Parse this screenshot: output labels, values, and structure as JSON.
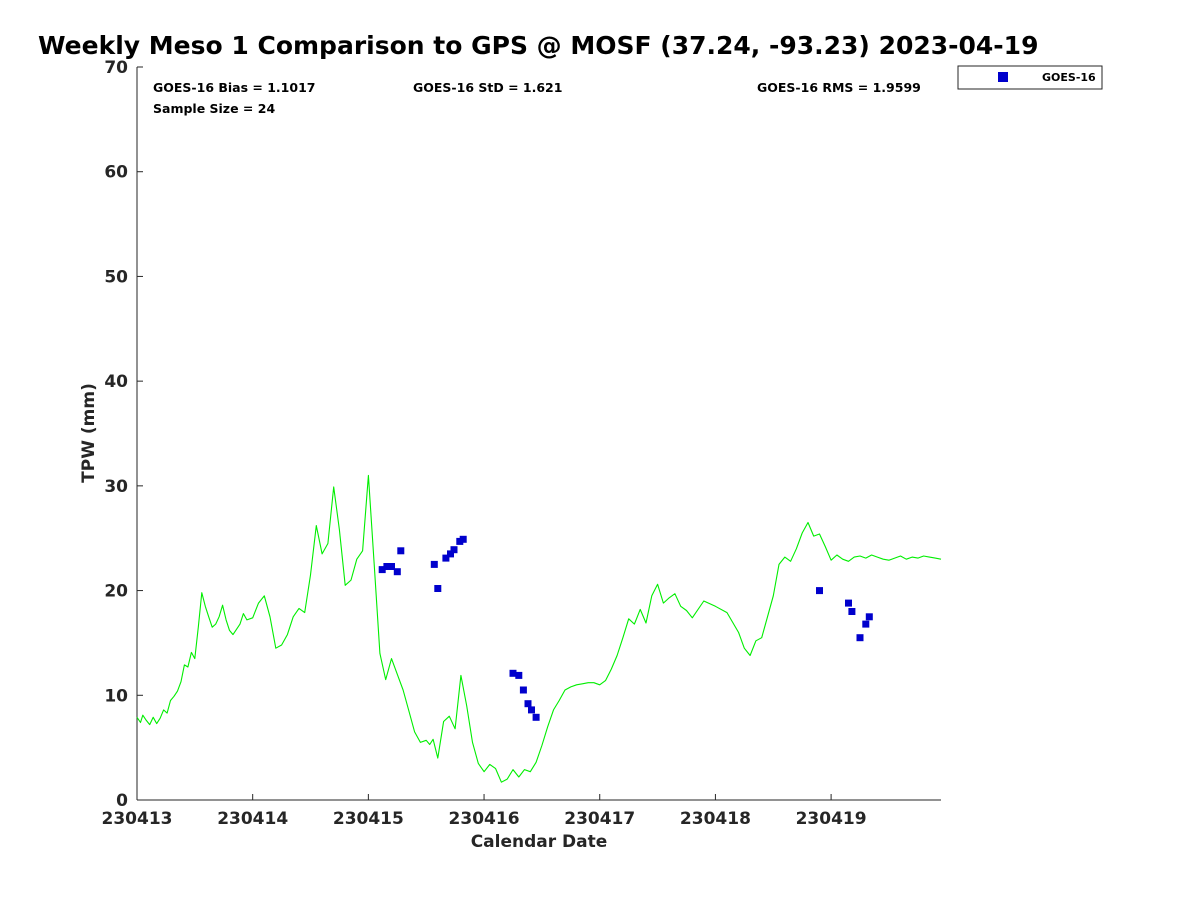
{
  "colors": {
    "gps_line": "#00ee00",
    "goes_marker": "#0000cc",
    "axis": "#262626"
  },
  "chart_data": {
    "type": "scatter",
    "title": "Weekly Meso 1 Comparison to GPS @ MOSF (37.24, -93.23) 2023-04-19",
    "xlabel": "Calendar Date",
    "ylabel": "TPW (mm)",
    "xlim": [
      0.0,
      6.95
    ],
    "ylim": [
      0,
      70
    ],
    "x_unit": "days since 230413",
    "x_tick_labels": [
      "230413",
      "230414",
      "230415",
      "230416",
      "230417",
      "230418",
      "230419"
    ],
    "y_ticks": [
      0,
      10,
      20,
      30,
      40,
      50,
      60,
      70
    ],
    "grid": false,
    "legend_position": "top-right (outside plot area)",
    "annotations": {
      "bias": "GOES-16 Bias = 1.1017",
      "std": "GOES-16 StD = 1.621",
      "rms": "GOES-16 RMS = 1.9599",
      "sample_size": "Sample Size = 24"
    },
    "series": [
      {
        "name": "GPS",
        "kind": "line",
        "color": "#00ee00",
        "x": [
          0.0,
          0.03,
          0.05,
          0.08,
          0.11,
          0.14,
          0.17,
          0.2,
          0.23,
          0.26,
          0.29,
          0.32,
          0.35,
          0.38,
          0.41,
          0.44,
          0.47,
          0.5,
          0.53,
          0.56,
          0.59,
          0.62,
          0.65,
          0.68,
          0.71,
          0.74,
          0.77,
          0.8,
          0.83,
          0.86,
          0.89,
          0.92,
          0.95,
          1.0,
          1.05,
          1.1,
          1.15,
          1.2,
          1.25,
          1.3,
          1.35,
          1.4,
          1.45,
          1.5,
          1.55,
          1.6,
          1.65,
          1.7,
          1.75,
          1.8,
          1.85,
          1.9,
          1.95,
          2.0,
          2.05,
          2.1,
          2.15,
          2.2,
          2.25,
          2.3,
          2.35,
          2.4,
          2.45,
          2.5,
          2.53,
          2.56,
          2.6,
          2.65,
          2.7,
          2.75,
          2.8,
          2.85,
          2.9,
          2.95,
          3.0,
          3.05,
          3.1,
          3.15,
          3.2,
          3.25,
          3.3,
          3.35,
          3.4,
          3.45,
          3.5,
          3.55,
          3.6,
          3.65,
          3.7,
          3.75,
          3.8,
          3.85,
          3.9,
          3.95,
          4.0,
          4.05,
          4.1,
          4.15,
          4.2,
          4.25,
          4.3,
          4.35,
          4.4,
          4.45,
          4.5,
          4.55,
          4.6,
          4.65,
          4.7,
          4.75,
          4.8,
          4.9,
          5.0,
          5.1,
          5.2,
          5.25,
          5.3,
          5.35,
          5.4,
          5.45,
          5.5,
          5.55,
          5.6,
          5.65,
          5.7,
          5.75,
          5.8,
          5.85,
          5.9,
          5.95,
          6.0,
          6.05,
          6.1,
          6.15,
          6.2,
          6.25,
          6.3,
          6.35,
          6.4,
          6.45,
          6.5,
          6.55,
          6.6,
          6.65,
          6.7,
          6.75,
          6.8,
          6.85,
          6.9,
          6.95
        ],
        "y": [
          7.9,
          7.4,
          8.1,
          7.6,
          7.2,
          7.9,
          7.3,
          7.8,
          8.6,
          8.3,
          9.5,
          9.9,
          10.4,
          11.3,
          12.9,
          12.7,
          14.1,
          13.5,
          16.5,
          19.8,
          18.5,
          17.5,
          16.5,
          16.8,
          17.5,
          18.6,
          17.2,
          16.2,
          15.8,
          16.3,
          16.8,
          17.8,
          17.2,
          17.4,
          18.8,
          19.5,
          17.5,
          14.5,
          14.8,
          15.8,
          17.5,
          18.3,
          17.9,
          21.5,
          26.2,
          23.5,
          24.5,
          29.9,
          25.8,
          20.5,
          21.0,
          23.0,
          23.8,
          31.0,
          22.5,
          14.0,
          11.5,
          13.5,
          12.0,
          10.5,
          8.5,
          6.5,
          5.5,
          5.7,
          5.3,
          5.8,
          4.0,
          7.5,
          8.0,
          6.8,
          11.9,
          9.0,
          5.5,
          3.5,
          2.7,
          3.4,
          3.0,
          1.7,
          2.0,
          2.9,
          2.2,
          2.9,
          2.7,
          3.6,
          5.2,
          7.0,
          8.6,
          9.5,
          10.5,
          10.8,
          11.0,
          11.1,
          11.2,
          11.2,
          11.0,
          11.4,
          12.5,
          13.8,
          15.5,
          17.3,
          16.8,
          18.2,
          16.9,
          19.5,
          20.6,
          18.8,
          19.3,
          19.7,
          18.5,
          18.1,
          17.4,
          19.0,
          18.5,
          17.9,
          16.0,
          14.5,
          13.8,
          15.2,
          15.5,
          17.5,
          19.5,
          22.5,
          23.2,
          22.8,
          24.0,
          25.5,
          26.5,
          25.2,
          25.4,
          24.2,
          22.9,
          23.4,
          23.0,
          22.8,
          23.2,
          23.3,
          23.1,
          23.4,
          23.2,
          23.0,
          22.9,
          23.1,
          23.3,
          23.0,
          23.2,
          23.1,
          23.3,
          23.2,
          23.1,
          23.0
        ]
      },
      {
        "name": "GOES-16",
        "kind": "scatter",
        "marker": "square",
        "color": "#0000cc",
        "x": [
          2.12,
          2.16,
          2.2,
          2.25,
          2.28,
          2.57,
          2.6,
          2.67,
          2.71,
          2.74,
          2.79,
          2.82,
          3.25,
          3.3,
          3.34,
          3.38,
          3.41,
          3.45,
          5.9,
          6.15,
          6.18,
          6.25,
          6.3,
          6.33
        ],
        "y": [
          22.0,
          22.3,
          22.3,
          21.8,
          23.8,
          22.5,
          20.2,
          23.1,
          23.5,
          23.9,
          24.7,
          24.9,
          12.1,
          11.9,
          10.5,
          9.2,
          8.6,
          7.9,
          20.0,
          18.8,
          18.0,
          15.5,
          16.8,
          17.5
        ]
      }
    ]
  }
}
